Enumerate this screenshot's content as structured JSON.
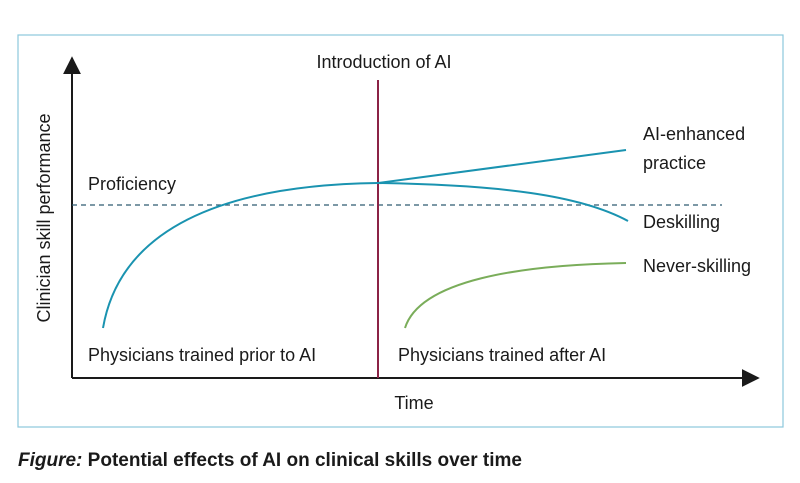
{
  "diagram": {
    "intervention_label": "Introduction of AI",
    "y_axis_label": "Clinician skill performance",
    "x_axis_label": "Time",
    "threshold_label": "Proficiency",
    "outcomes": {
      "enhanced": [
        "AI-enhanced",
        "practice"
      ],
      "deskilling": "Deskilling",
      "never_skilling": "Never-skilling"
    },
    "cohorts": {
      "before": "Physicians trained prior to AI",
      "after": "Physicians trained after AI"
    }
  },
  "caption": {
    "lead": "Figure:",
    "text": "Potential effects of AI on clinical skills over time"
  }
}
